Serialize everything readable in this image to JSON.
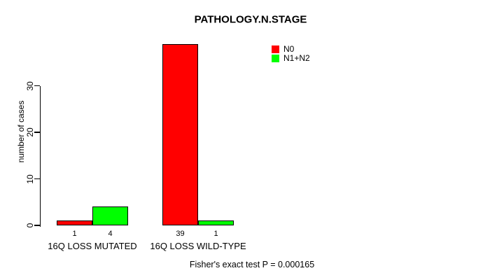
{
  "title": "PATHOLOGY.N.STAGE",
  "chart_data": {
    "type": "bar",
    "title": "PATHOLOGY.N.STAGE",
    "xlabel": "",
    "ylabel": "number of cases",
    "categories": [
      "16Q LOSS MUTATED",
      "16Q LOSS WILD-TYPE"
    ],
    "series": [
      {
        "name": "N0",
        "color": "#ff0000",
        "values": [
          1,
          39
        ]
      },
      {
        "name": "N1+N2",
        "color": "#00ff00",
        "values": [
          4,
          1
        ]
      }
    ],
    "bar_value_labels": [
      [
        "1",
        "39"
      ],
      [
        "4",
        "1"
      ]
    ],
    "yticks": [
      0,
      10,
      20,
      30
    ],
    "ylim": [
      0,
      40
    ],
    "grid": false,
    "legend_position": "top-right",
    "annotation": "Fisher's exact test P = 0.000165"
  },
  "colors": {
    "background": "#ffffff",
    "axis": "#000000",
    "text": "#000000",
    "bar_border": "#000000",
    "series_n0": "#ff0000",
    "series_n1n2": "#00ff00"
  }
}
